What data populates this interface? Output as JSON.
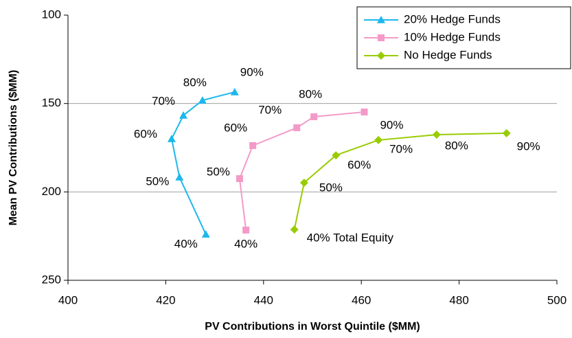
{
  "chart_data": {
    "type": "line",
    "x_label": "PV Contributions in Worst Quintile ($MM)",
    "y_label": "Mean PV Contributions ($MM)",
    "xlim": [
      400,
      500
    ],
    "xticks": [
      400,
      420,
      440,
      460,
      480,
      500
    ],
    "ylim": [
      100,
      250
    ],
    "yticks": [
      100,
      150,
      200,
      250
    ],
    "y_inverted": true,
    "grid": true,
    "legend": "top-right",
    "series": [
      {
        "name": "20% Hedge Funds",
        "color": "#1cb8ec",
        "marker": "triangle",
        "x": [
          434.1,
          427.5,
          423.6,
          421.2,
          422.8,
          428.2
        ],
        "values": [
          143.5,
          148.2,
          156.7,
          170,
          191.7,
          224
        ],
        "labels": [
          "90%",
          "80%",
          "70%",
          "60%",
          "50%",
          "40%"
        ]
      },
      {
        "name": "10% Hedge Funds",
        "color": "#f49ac8",
        "marker": "square",
        "x": [
          460.6,
          450.3,
          446.8,
          437.8,
          435.1,
          436.4
        ],
        "values": [
          154.8,
          157.5,
          163.7,
          173.8,
          192.5,
          221.6
        ],
        "labels": [
          "90%",
          "80%",
          "70%",
          "60%",
          "50%",
          "40%"
        ]
      },
      {
        "name": "No Hedge Funds",
        "color": "#99cc00",
        "marker": "diamond",
        "x": [
          489.7,
          475.4,
          463.5,
          454.8,
          448.3,
          446.3
        ],
        "values": [
          166.8,
          167.6,
          170.7,
          179.3,
          194.8,
          221.3
        ],
        "labels": [
          "90%",
          "80%",
          "70%",
          "60%",
          "50%",
          "40% Total Equity"
        ]
      }
    ]
  }
}
